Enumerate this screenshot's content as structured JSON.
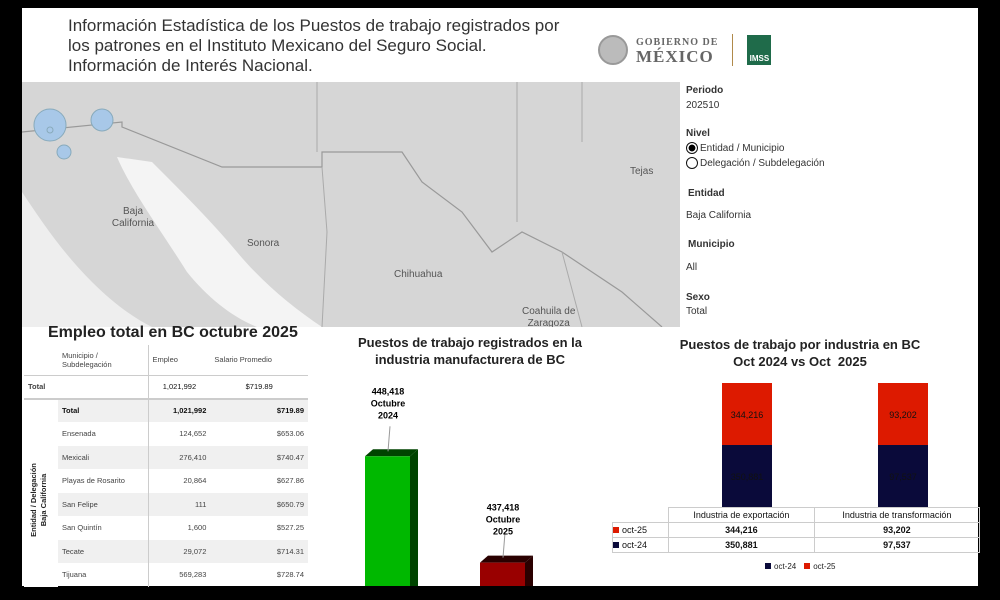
{
  "header": {
    "title_lines": [
      "Información Estadística de los Puestos de trabajo registrados por",
      "los patrones en el Instituto Mexicano del Seguro Social.",
      "Información de Interés Nacional."
    ],
    "logo": {
      "gob_line1": "GOBIERNO DE",
      "gob_line2": "MÉXICO",
      "imss": "IMSS"
    }
  },
  "map": {
    "labels": [
      "Baja\nCalifornia",
      "Sonora",
      "Chihuahua",
      "Tejas",
      "Coahuila de\nZaragoza"
    ],
    "bubble_color": "#a8c8e8"
  },
  "filters": {
    "periodo_label": "Periodo",
    "periodo_value": "202510",
    "nivel_label": "Nivel",
    "nivel_options": [
      {
        "label": "Entidad / Municipio",
        "selected": true
      },
      {
        "label": "Delegación / Subdelegación",
        "selected": false
      }
    ],
    "entidad_label": "Entidad",
    "entidad_value": "Baja California",
    "municipio_label": "Municipio",
    "municipio_value": "All",
    "sexo_label": "Sexo",
    "sexo_value": "Total"
  },
  "employment_table": {
    "title": "Empleo total en BC octubre 2025",
    "headers": [
      "Municipio / Subdelegación",
      "Empleo",
      "Salario Promedio"
    ],
    "grand_total": {
      "label": "Total",
      "empleo": "1,021,992",
      "salario": "$719.89"
    },
    "group_label": "Entidad / Delegación",
    "group_value": "Baja California",
    "rows": [
      {
        "name": "Total",
        "empleo": "1,021,992",
        "salario": "$719.89"
      },
      {
        "name": "Ensenada",
        "empleo": "124,652",
        "salario": "$653.06"
      },
      {
        "name": "Mexicali",
        "empleo": "276,410",
        "salario": "$740.47"
      },
      {
        "name": "Playas de Rosarito",
        "empleo": "20,864",
        "salario": "$627.86"
      },
      {
        "name": "San Felipe",
        "empleo": "111",
        "salario": "$650.79"
      },
      {
        "name": "San Quintín",
        "empleo": "1,600",
        "salario": "$527.25"
      },
      {
        "name": "Tecate",
        "empleo": "29,072",
        "salario": "$714.31"
      },
      {
        "name": "Tijuana",
        "empleo": "569,283",
        "salario": "$728.74"
      }
    ]
  },
  "chart_data": [
    {
      "type": "bar",
      "title": "Puestos de trabajo registrados en la industria manufacturera de BC",
      "categories": [
        "Octubre 2024",
        "Octubre 2025"
      ],
      "values": [
        448418,
        437418
      ],
      "labels": [
        [
          "448,418",
          "Octubre",
          "2024"
        ],
        [
          "437,418",
          "Octubre",
          "2025"
        ]
      ],
      "colors": [
        "#00b800",
        "#990000"
      ],
      "style": "3d"
    },
    {
      "type": "bar",
      "stacked": true,
      "title": "Puestos de trabajo por industria en BC\nOct 2024 vs Oct  2025",
      "categories": [
        "Industria de exportación",
        "Industria de transformación"
      ],
      "series": [
        {
          "name": "oct-24",
          "values": [
            350881,
            97537
          ],
          "labels": [
            "350,881",
            "97,537"
          ],
          "color": "#0a0a3a"
        },
        {
          "name": "oct-25",
          "values": [
            344216,
            93202
          ],
          "labels": [
            "344,216",
            "93,202"
          ],
          "color": "#dd1a00"
        }
      ],
      "legend": "bottom",
      "legend_entries": [
        "oct-24",
        "oct-25"
      ],
      "data_table": true
    }
  ]
}
